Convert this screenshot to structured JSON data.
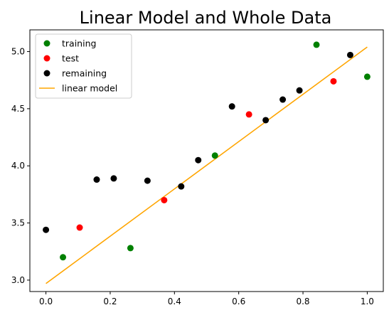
{
  "chart_data": {
    "type": "scatter",
    "title": "Linear Model and Whole Data",
    "xlabel": "",
    "ylabel": "",
    "xlim": [
      -0.05,
      1.05
    ],
    "ylim": [
      2.9,
      5.19
    ],
    "xticks": [
      "0.0",
      "0.2",
      "0.4",
      "0.6",
      "0.8",
      "1.0"
    ],
    "yticks": [
      "3.0",
      "3.5",
      "4.0",
      "4.5",
      "5.0"
    ],
    "legend_position": "top-left",
    "series": [
      {
        "name": "training",
        "color": "#008000",
        "kind": "scatter",
        "x": [
          0.053,
          0.263,
          0.526,
          0.842,
          1.0
        ],
        "y": [
          3.2,
          3.28,
          4.09,
          5.06,
          4.78
        ]
      },
      {
        "name": "test",
        "color": "#ff0000",
        "kind": "scatter",
        "x": [
          0.105,
          0.368,
          0.632,
          0.895
        ],
        "y": [
          3.46,
          3.7,
          4.45,
          4.74
        ]
      },
      {
        "name": "remaining",
        "color": "#000000",
        "kind": "scatter",
        "x": [
          0.0,
          0.158,
          0.211,
          0.316,
          0.421,
          0.474,
          0.579,
          0.684,
          0.737,
          0.789,
          0.947
        ],
        "y": [
          3.44,
          3.88,
          3.89,
          3.87,
          3.82,
          4.05,
          4.52,
          4.4,
          4.58,
          4.66,
          4.97
        ]
      },
      {
        "name": "linear model",
        "color": "#ffa500",
        "kind": "line",
        "x": [
          0.0,
          1.0
        ],
        "y": [
          2.97,
          5.04
        ]
      }
    ]
  }
}
